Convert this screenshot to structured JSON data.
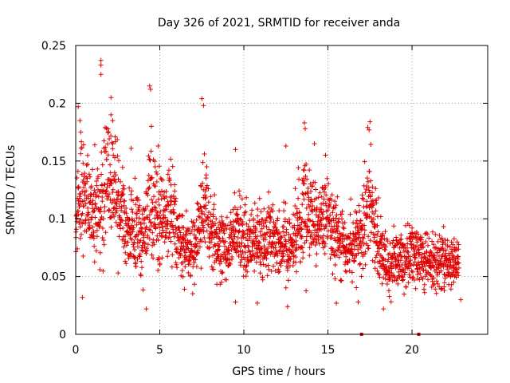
{
  "chart_data": {
    "type": "scatter",
    "title": "Day 326 of 2021, SRMTID for receiver anda",
    "xlabel": "GPS time / hours",
    "ylabel": "SRMTID / TECUs",
    "xlim": [
      0,
      24.5
    ],
    "ylim": [
      0,
      0.25
    ],
    "x_ticks": [
      0,
      5,
      10,
      15,
      20
    ],
    "y_ticks": [
      0,
      0.05,
      0.1,
      0.15,
      0.2,
      0.25
    ],
    "x_tick_labels": [
      "0",
      "5",
      "10",
      "15",
      "20"
    ],
    "y_tick_labels": [
      "0",
      "0.05",
      "0.1",
      "0.15",
      "0.2",
      "0.25"
    ],
    "grid": true,
    "marker": "+",
    "color": "#e00000",
    "baseline_marks_x": [
      17.0,
      20.4
    ],
    "series": [
      {
        "name": "SRMTID",
        "envelope": [
          {
            "x": 0.0,
            "center": 0.095,
            "spread": 0.03
          },
          {
            "x": 0.3,
            "center": 0.12,
            "spread": 0.05
          },
          {
            "x": 0.6,
            "center": 0.11,
            "spread": 0.04
          },
          {
            "x": 1.0,
            "center": 0.1,
            "spread": 0.035
          },
          {
            "x": 1.5,
            "center": 0.11,
            "spread": 0.045
          },
          {
            "x": 1.9,
            "center": 0.13,
            "spread": 0.05
          },
          {
            "x": 2.3,
            "center": 0.12,
            "spread": 0.045
          },
          {
            "x": 3.0,
            "center": 0.095,
            "spread": 0.03
          },
          {
            "x": 3.5,
            "center": 0.09,
            "spread": 0.03
          },
          {
            "x": 4.0,
            "center": 0.085,
            "spread": 0.03
          },
          {
            "x": 4.4,
            "center": 0.11,
            "spread": 0.05
          },
          {
            "x": 5.0,
            "center": 0.1,
            "spread": 0.04
          },
          {
            "x": 5.6,
            "center": 0.11,
            "spread": 0.04
          },
          {
            "x": 6.3,
            "center": 0.075,
            "spread": 0.025
          },
          {
            "x": 7.0,
            "center": 0.075,
            "spread": 0.025
          },
          {
            "x": 7.6,
            "center": 0.11,
            "spread": 0.045
          },
          {
            "x": 8.3,
            "center": 0.08,
            "spread": 0.025
          },
          {
            "x": 9.0,
            "center": 0.075,
            "spread": 0.025
          },
          {
            "x": 9.6,
            "center": 0.09,
            "spread": 0.03
          },
          {
            "x": 10.2,
            "center": 0.075,
            "spread": 0.03
          },
          {
            "x": 11.0,
            "center": 0.085,
            "spread": 0.03
          },
          {
            "x": 11.5,
            "center": 0.085,
            "spread": 0.03
          },
          {
            "x": 12.2,
            "center": 0.08,
            "spread": 0.03
          },
          {
            "x": 12.8,
            "center": 0.075,
            "spread": 0.025
          },
          {
            "x": 13.6,
            "center": 0.11,
            "spread": 0.045
          },
          {
            "x": 14.2,
            "center": 0.09,
            "spread": 0.03
          },
          {
            "x": 14.9,
            "center": 0.105,
            "spread": 0.035
          },
          {
            "x": 15.5,
            "center": 0.085,
            "spread": 0.025
          },
          {
            "x": 16.2,
            "center": 0.075,
            "spread": 0.025
          },
          {
            "x": 16.8,
            "center": 0.08,
            "spread": 0.03
          },
          {
            "x": 17.5,
            "center": 0.12,
            "spread": 0.045
          },
          {
            "x": 18.0,
            "center": 0.075,
            "spread": 0.025
          },
          {
            "x": 18.6,
            "center": 0.06,
            "spread": 0.02
          },
          {
            "x": 19.3,
            "center": 0.065,
            "spread": 0.02
          },
          {
            "x": 20.0,
            "center": 0.07,
            "spread": 0.025
          },
          {
            "x": 20.8,
            "center": 0.065,
            "spread": 0.02
          },
          {
            "x": 21.5,
            "center": 0.06,
            "spread": 0.02
          },
          {
            "x": 22.2,
            "center": 0.065,
            "spread": 0.02
          },
          {
            "x": 22.8,
            "center": 0.06,
            "spread": 0.015
          }
        ],
        "peaks": [
          {
            "x": 1.5,
            "y": 0.237
          },
          {
            "x": 1.5,
            "y": 0.233
          },
          {
            "x": 2.1,
            "y": 0.205
          },
          {
            "x": 1.5,
            "y": 0.225
          },
          {
            "x": 4.4,
            "y": 0.215
          },
          {
            "x": 4.45,
            "y": 0.212
          },
          {
            "x": 4.5,
            "y": 0.18
          },
          {
            "x": 7.5,
            "y": 0.204
          },
          {
            "x": 7.6,
            "y": 0.198
          },
          {
            "x": 0.15,
            "y": 0.197
          },
          {
            "x": 0.25,
            "y": 0.185
          },
          {
            "x": 0.3,
            "y": 0.175
          },
          {
            "x": 2.1,
            "y": 0.19
          },
          {
            "x": 2.2,
            "y": 0.185
          },
          {
            "x": 13.6,
            "y": 0.183
          },
          {
            "x": 13.65,
            "y": 0.178
          },
          {
            "x": 17.5,
            "y": 0.184
          },
          {
            "x": 17.45,
            "y": 0.177
          },
          {
            "x": 3.3,
            "y": 0.161
          },
          {
            "x": 4.9,
            "y": 0.163
          },
          {
            "x": 14.2,
            "y": 0.165
          },
          {
            "x": 9.5,
            "y": 0.16
          },
          {
            "x": 12.5,
            "y": 0.163
          },
          {
            "x": 16.8,
            "y": 0.028
          },
          {
            "x": 4.2,
            "y": 0.022
          },
          {
            "x": 18.3,
            "y": 0.022
          },
          {
            "x": 0.4,
            "y": 0.032
          },
          {
            "x": 12.6,
            "y": 0.024
          },
          {
            "x": 10.8,
            "y": 0.027
          },
          {
            "x": 9.5,
            "y": 0.028
          },
          {
            "x": 15.5,
            "y": 0.027
          },
          {
            "x": 22.9,
            "y": 0.03
          }
        ]
      }
    ]
  }
}
